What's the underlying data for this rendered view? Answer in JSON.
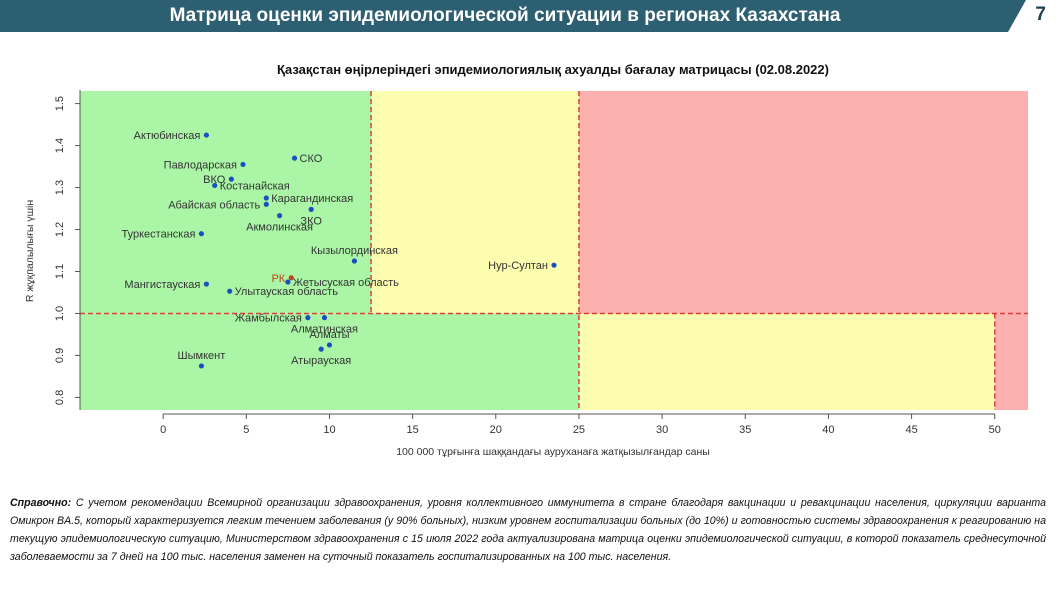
{
  "header": {
    "title": "Матрица оценки эпидемиологической ситуации в регионах Казахстана",
    "page_number": "7"
  },
  "colors": {
    "header_bg": "#2d5f73",
    "zone_green": "#aaf6a6",
    "zone_yellow": "#fdfdb0",
    "zone_red": "#fcb0b0",
    "threshold_line": "#d9413a",
    "point": "#1a4fc0",
    "point_rk": "#c0451a"
  },
  "chart_data": {
    "type": "scatter",
    "title": "Қазақстан өңірлеріндегі эпидемиологиялық ахуалды бағалау матрицасы  (02.08.2022)",
    "xlabel": "100 000 тұрғынға шаққандағы ауруханаға жатқызылғандар саны",
    "ylabel": "R жұқпалылығы үшін",
    "xlim": [
      -5,
      52
    ],
    "ylim": [
      0.77,
      1.53
    ],
    "xticks": [
      0,
      5,
      10,
      15,
      20,
      25,
      30,
      35,
      40,
      45,
      50
    ],
    "yticks": [
      0.8,
      0.9,
      1.0,
      1.1,
      1.2,
      1.3,
      1.4,
      1.5
    ],
    "ytick_labels": [
      "0.8",
      "0.9",
      "1.0",
      "1.1",
      "1.2",
      "1.3",
      "1.4",
      "1.5"
    ],
    "thresholds": {
      "x_low": 12.5,
      "x_high": 25,
      "x_max": 50,
      "y": 1.0
    },
    "points": [
      {
        "label": "Актюбинская",
        "x": 2.6,
        "y": 1.425,
        "anchor": "end"
      },
      {
        "label": "Павлодарская",
        "x": 4.8,
        "y": 1.355,
        "anchor": "end"
      },
      {
        "label": "СКО",
        "x": 7.9,
        "y": 1.37,
        "anchor": "start"
      },
      {
        "label": "ВКО",
        "x": 4.1,
        "y": 1.32,
        "anchor": "end"
      },
      {
        "label": "Костанайская",
        "x": 3.1,
        "y": 1.305,
        "anchor": "start"
      },
      {
        "label": "Карагандинская",
        "x": 6.2,
        "y": 1.275,
        "anchor": "start"
      },
      {
        "label": "Абайская область",
        "x": 6.2,
        "y": 1.26,
        "anchor": "end"
      },
      {
        "label": "ЗКО",
        "x": 8.9,
        "y": 1.248,
        "anchor": "under"
      },
      {
        "label": "Туркестанская",
        "x": 2.3,
        "y": 1.19,
        "anchor": "end"
      },
      {
        "label": "Акмолинская",
        "x": 7.0,
        "y": 1.233,
        "anchor": "under"
      },
      {
        "label": "Кызылординская",
        "x": 11.5,
        "y": 1.125,
        "anchor": "above"
      },
      {
        "label": "Нур-Султан",
        "x": 23.5,
        "y": 1.115,
        "anchor": "end"
      },
      {
        "label": "РК",
        "x": 7.7,
        "y": 1.085,
        "anchor": "end",
        "highlight": true
      },
      {
        "label": "Жетысуская область",
        "x": 7.5,
        "y": 1.075,
        "anchor": "start"
      },
      {
        "label": "Мангистауская",
        "x": 2.6,
        "y": 1.07,
        "anchor": "end"
      },
      {
        "label": "Улытауская область",
        "x": 4.0,
        "y": 1.053,
        "anchor": "start"
      },
      {
        "label": "Жамбылская",
        "x": 8.7,
        "y": 0.99,
        "anchor": "end"
      },
      {
        "label": "Алматинская",
        "x": 9.7,
        "y": 0.99,
        "anchor": "under"
      },
      {
        "label": "Алматы",
        "x": 10.0,
        "y": 0.925,
        "anchor": "above"
      },
      {
        "label": "Атырауская",
        "x": 9.5,
        "y": 0.915,
        "anchor": "under"
      },
      {
        "label": "Шымкент",
        "x": 2.3,
        "y": 0.875,
        "anchor": "above"
      }
    ]
  },
  "note": {
    "lead": "Справочно:",
    "text": " С учетом рекомендации Всемирной организации здравоохранения, уровня коллективного иммунитета в стране благодаря вакцинации и ревакцинации населения, циркуляции варианта Омикрон BA.5, который характеризуется легким течением заболевания (у 90% больных), низким уровнем госпитализации больных (до 10%) и готовностью системы здравоохранения к реагированию на текущую эпидемиологическую ситуацию, Министерством здравоохранения с 15 июля 2022 года актуализирована матрица оценки эпидемиологической ситуации, в которой показатель среднесуточной заболеваемости за 7 дней на 100 тыс. населения заменен на суточный показатель госпитализированных на 100 тыс. населения."
  }
}
